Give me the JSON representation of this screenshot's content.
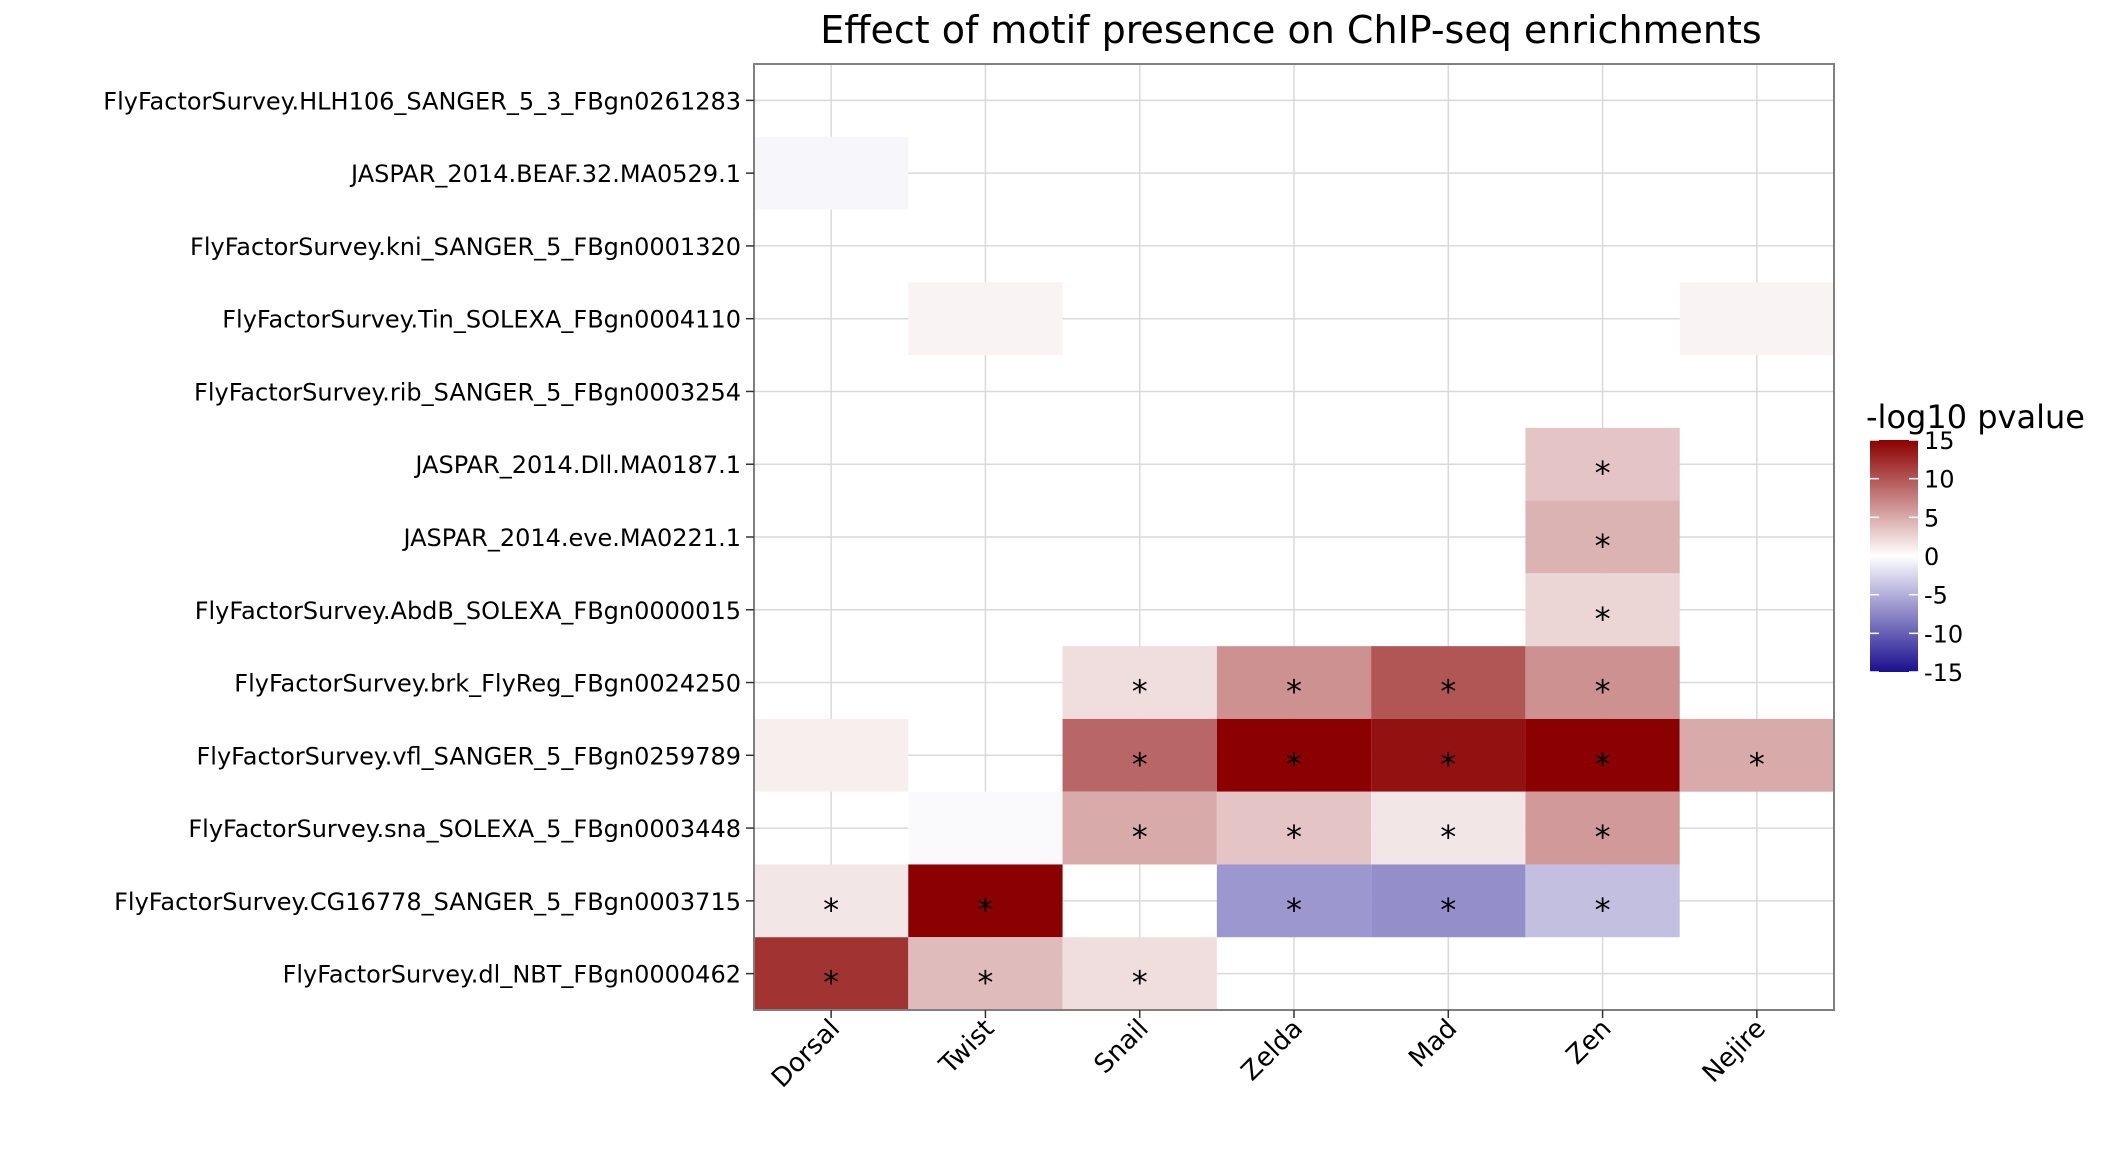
{
  "chart_data": {
    "type": "heatmap",
    "title": "Effect of motif presence on ChIP-seq enrichments",
    "x_categories": [
      "Dorsal",
      "Twist",
      "Snail",
      "Zelda",
      "Mad",
      "Zen",
      "Nejire"
    ],
    "y_categories": [
      "FlyFactorSurvey.HLH106_SANGER_5_3_FBgn0261283",
      "JASPAR_2014.BEAF.32.MA0529.1",
      "FlyFactorSurvey.kni_SANGER_5_FBgn0001320",
      "FlyFactorSurvey.Tin_SOLEXA_FBgn0004110",
      "FlyFactorSurvey.rib_SANGER_5_FBgn0003254",
      "JASPAR_2014.Dll.MA0187.1",
      "JASPAR_2014.eve.MA0221.1",
      "FlyFactorSurvey.AbdB_SOLEXA_FBgn0000015",
      "FlyFactorSurvey.brk_FlyReg_FBgn0024250",
      "FlyFactorSurvey.vfl_SANGER_5_FBgn0259789",
      "FlyFactorSurvey.sna_SOLEXA_5_FBgn0003448",
      "FlyFactorSurvey.CG16778_SANGER_5_FBgn0003715",
      "FlyFactorSurvey.dl_NBT_FBgn0000462"
    ],
    "values": [
      [
        0,
        0,
        0,
        0,
        0,
        0,
        0
      ],
      [
        -0.5,
        0,
        0,
        0,
        0,
        0,
        0
      ],
      [
        0,
        0,
        0,
        0,
        0,
        0,
        0
      ],
      [
        0,
        0.7,
        0,
        0,
        0,
        0,
        0.7
      ],
      [
        0,
        0,
        0,
        0,
        0,
        0,
        0
      ],
      [
        0,
        0,
        0,
        0,
        0,
        3.5,
        0
      ],
      [
        0,
        0,
        0,
        0,
        0,
        4.5,
        0
      ],
      [
        0,
        0,
        0,
        0,
        0,
        2.5,
        0
      ],
      [
        0,
        0,
        2,
        6.5,
        10,
        6.5,
        0
      ],
      [
        1,
        0,
        9,
        16,
        14,
        16,
        5
      ],
      [
        0,
        -0.3,
        5,
        3.5,
        1.5,
        6,
        0
      ],
      [
        1.5,
        16,
        0,
        -6.5,
        -7,
        -4,
        0
      ],
      [
        12,
        4,
        2,
        0,
        0,
        0,
        0
      ]
    ],
    "significant": [
      [
        false,
        false,
        false,
        false,
        false,
        false,
        false
      ],
      [
        false,
        false,
        false,
        false,
        false,
        false,
        false
      ],
      [
        false,
        false,
        false,
        false,
        false,
        false,
        false
      ],
      [
        false,
        false,
        false,
        false,
        false,
        false,
        false
      ],
      [
        false,
        false,
        false,
        false,
        false,
        false,
        false
      ],
      [
        false,
        false,
        false,
        false,
        false,
        true,
        false
      ],
      [
        false,
        false,
        false,
        false,
        false,
        true,
        false
      ],
      [
        false,
        false,
        false,
        false,
        false,
        true,
        false
      ],
      [
        false,
        false,
        true,
        true,
        true,
        true,
        false
      ],
      [
        false,
        false,
        true,
        true,
        true,
        true,
        true
      ],
      [
        false,
        false,
        true,
        true,
        true,
        true,
        false
      ],
      [
        true,
        true,
        false,
        true,
        true,
        true,
        false
      ],
      [
        true,
        true,
        true,
        false,
        false,
        false,
        false
      ]
    ],
    "significance_marker": "*",
    "legend": {
      "title": "-log10 pvalue",
      "ticks": [
        15,
        10,
        5,
        0,
        -5,
        -10,
        -15
      ],
      "tick_labels": [
        "15",
        "10",
        "5",
        "0",
        "-5",
        "-10",
        "-15"
      ],
      "range": [
        -15,
        15
      ],
      "position": "right"
    },
    "color_scale": {
      "low": "#1a0f8f",
      "mid": "#ffffff",
      "high": "#8b0000"
    },
    "grid": true
  }
}
